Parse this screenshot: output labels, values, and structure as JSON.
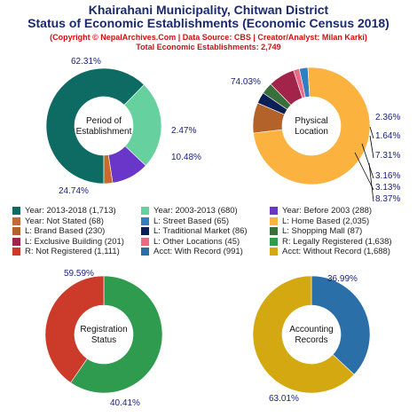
{
  "header": {
    "title_line1": "Khairahani Municipality, Chitwan District",
    "title_line2": "Status of Economic Establishments (Economic Census 2018)",
    "copyright": "(Copyright © NepalArchives.Com | Data Source: CBS | Creator/Analyst: Milan Karki)",
    "total": "Total Economic Establishments: 2,749"
  },
  "chart_data": [
    {
      "type": "pie",
      "title": "Period of Establishment",
      "categories": [
        "Year: 2013-2018",
        "Year: 2003-2013",
        "Year: Before 2003",
        "Year: Not Stated"
      ],
      "values": [
        1713,
        680,
        288,
        68
      ],
      "labels": [
        "62.31%",
        "24.74%",
        "10.48%",
        "2.47%"
      ],
      "colors": [
        "#0e6b63",
        "#66d19e",
        "#6a35c9",
        "#c8692f"
      ]
    },
    {
      "type": "pie",
      "title": "Physical Location",
      "categories": [
        "L: Street Based",
        "L: Home Based",
        "L: Brand Based",
        "L: Traditional Market",
        "L: Shopping Mall",
        "L: Exclusive Building",
        "L: Other Locations"
      ],
      "values": [
        65,
        2035,
        230,
        86,
        87,
        201,
        45
      ],
      "labels": [
        "2.36%",
        "74.03%",
        "8.37%",
        "3.13%",
        "3.16%",
        "7.31%",
        "1.64%"
      ],
      "colors": [
        "#2f7fc1",
        "#fbb23f",
        "#b3622a",
        "#0a1f55",
        "#3a6e3a",
        "#a3244a",
        "#e96b86"
      ]
    },
    {
      "type": "pie",
      "title": "Registration Status",
      "categories": [
        "R: Legally Registered",
        "R: Not Registered"
      ],
      "values": [
        1638,
        1111
      ],
      "labels": [
        "59.59%",
        "40.41%"
      ],
      "colors": [
        "#2e9b4e",
        "#cc3b2a"
      ]
    },
    {
      "type": "pie",
      "title": "Accounting Records",
      "categories": [
        "Acct: With Record",
        "Acct: Without Record"
      ],
      "values": [
        991,
        1688
      ],
      "labels": [
        "36.99%",
        "63.01%"
      ],
      "colors": [
        "#2a6fa8",
        "#d4a811"
      ]
    }
  ],
  "legend": [
    {
      "label": "Year: 2013-2018 (1,713)",
      "color": "#0e6b63"
    },
    {
      "label": "Year: 2003-2013 (680)",
      "color": "#66d19e"
    },
    {
      "label": "Year: Before 2003 (288)",
      "color": "#6a35c9"
    },
    {
      "label": "Year: Not Stated (68)",
      "color": "#c8692f"
    },
    {
      "label": "L: Street Based (65)",
      "color": "#2f7fc1"
    },
    {
      "label": "L: Home Based (2,035)",
      "color": "#fbb23f"
    },
    {
      "label": "L: Brand Based (230)",
      "color": "#b3622a"
    },
    {
      "label": "L: Traditional Market (86)",
      "color": "#0a1f55"
    },
    {
      "label": "L: Shopping Mall (87)",
      "color": "#3a6e3a"
    },
    {
      "label": "L: Exclusive Building (201)",
      "color": "#a3244a"
    },
    {
      "label": "L: Other Locations (45)",
      "color": "#e96b86"
    },
    {
      "label": "R: Legally Registered (1,638)",
      "color": "#2e9b4e"
    },
    {
      "label": "R: Not Registered (1,111)",
      "color": "#cc3b2a"
    },
    {
      "label": "Acct: With Record (991)",
      "color": "#2a6fa8"
    },
    {
      "label": "Acct: Without Record (1,688)",
      "color": "#d4a811"
    }
  ]
}
